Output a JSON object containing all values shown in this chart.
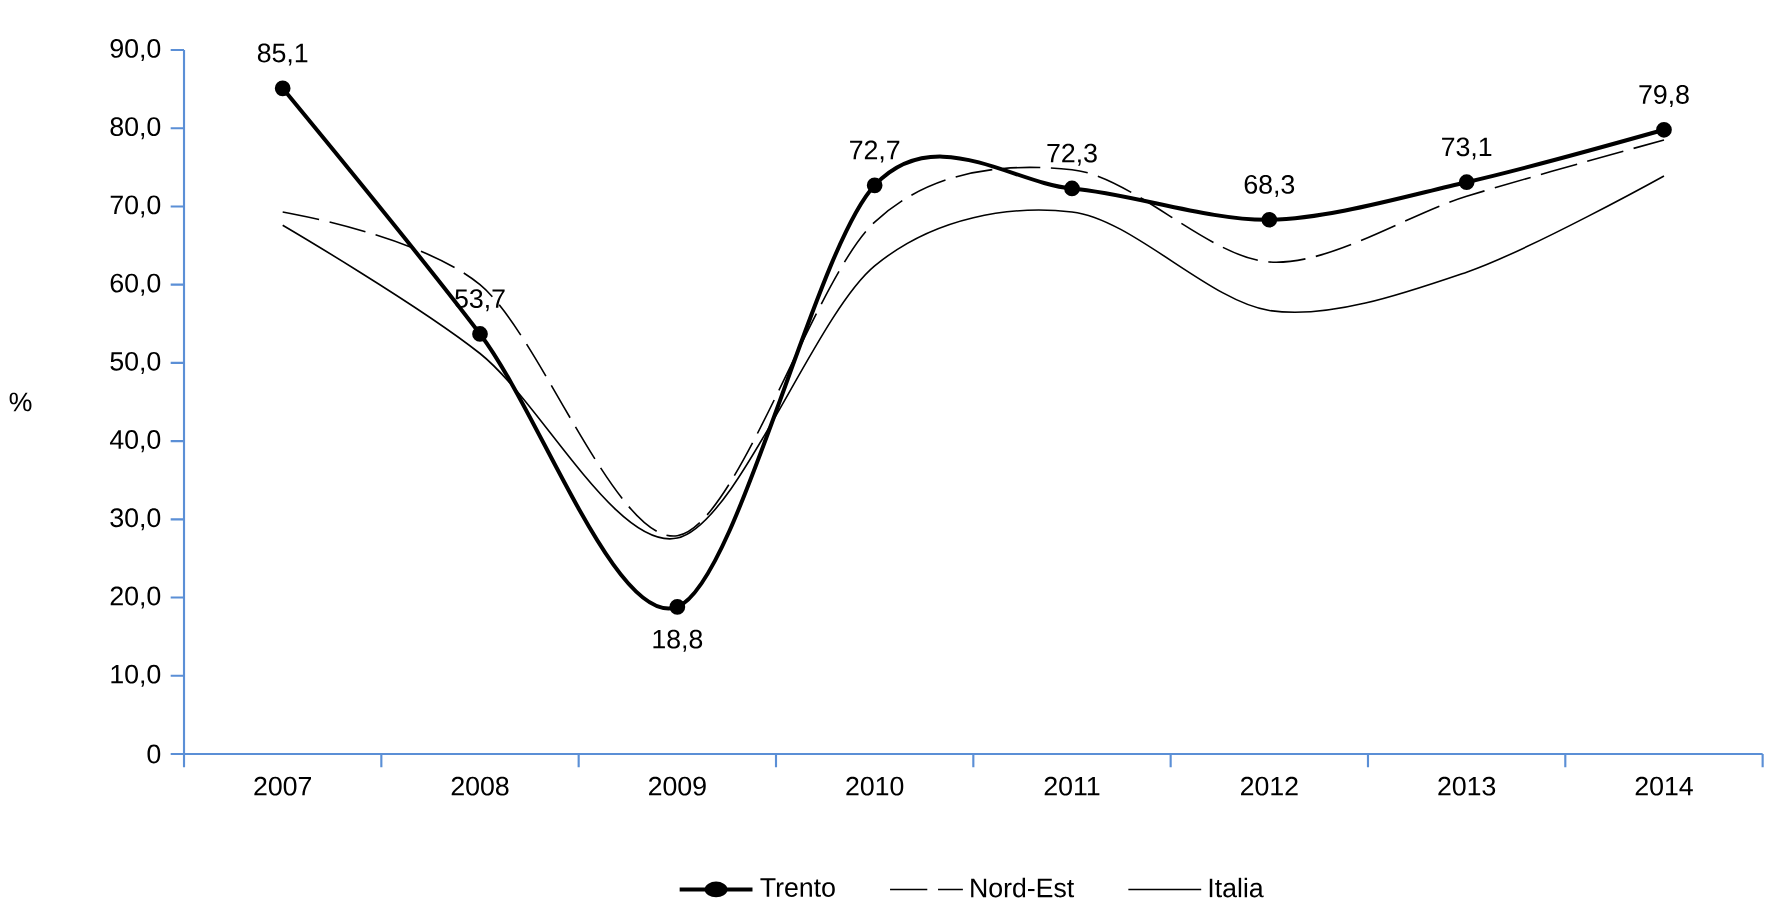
{
  "chart_data": {
    "type": "line",
    "ylabel": "%",
    "categories": [
      "2007",
      "2008",
      "2009",
      "2010",
      "2011",
      "2012",
      "2013",
      "2014"
    ],
    "ylim": [
      0,
      90
    ],
    "yticks": [
      {
        "value": 0,
        "label": "0"
      },
      {
        "value": 10,
        "label": "10,0"
      },
      {
        "value": 20,
        "label": "20,0"
      },
      {
        "value": 30,
        "label": "30,0"
      },
      {
        "value": 40,
        "label": "40,0"
      },
      {
        "value": 50,
        "label": "50,0"
      },
      {
        "value": 60,
        "label": "60,0"
      },
      {
        "value": 70,
        "label": "70,0"
      },
      {
        "value": 80,
        "label": "80,0"
      },
      {
        "value": 90,
        "label": "90,0"
      }
    ],
    "series": [
      {
        "name": "Trento",
        "color": "#000000",
        "marker": "circle",
        "line_style": "solid",
        "values": [
          85.1,
          53.7,
          18.8,
          72.7,
          72.3,
          68.3,
          73.1,
          79.8
        ],
        "value_labels": [
          "85,1",
          "53,7",
          "18,8",
          "72,7",
          "72,3",
          "68,3",
          "73,1",
          "79,8"
        ]
      },
      {
        "name": "Nord-Est",
        "color": "#000000",
        "marker": "none",
        "line_style": "dashed",
        "values": [
          69.3,
          60,
          27.9,
          68,
          74.7,
          62.9,
          71.3,
          78.5
        ]
      },
      {
        "name": "Italia",
        "color": "#000000",
        "marker": "none",
        "line_style": "solid",
        "values": [
          67.6,
          51.2,
          27.6,
          62.4,
          69.3,
          56.7,
          61.6,
          73.9
        ]
      }
    ],
    "grid": false,
    "legend": "bottom"
  }
}
